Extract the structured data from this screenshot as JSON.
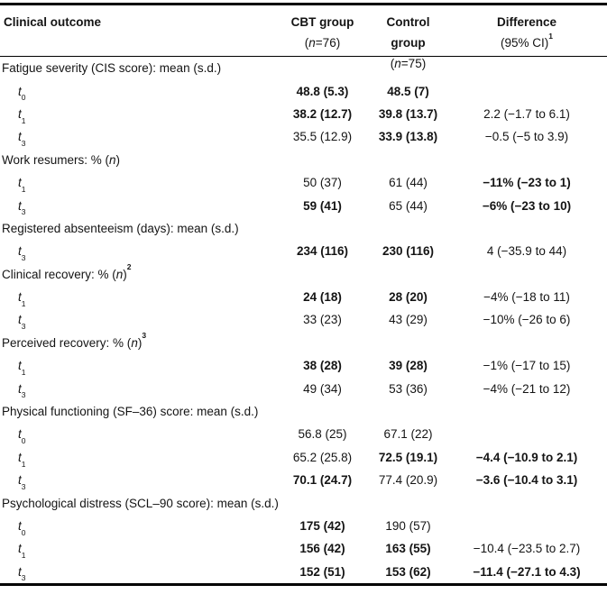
{
  "table": {
    "header": {
      "outcome": {
        "label": "Clinical outcome"
      },
      "cbt": {
        "label": "CBT group",
        "sub_pre": "(",
        "sub_n": "n",
        "sub_post": "=76)"
      },
      "control": {
        "label": "Control group",
        "sub_pre": "(",
        "sub_n": "n",
        "sub_post": "=75)"
      },
      "diff": {
        "label": "Difference",
        "sub_pre": "(95% CI)",
        "sup": "1"
      }
    },
    "rows": [
      {
        "type": "section",
        "pre": "Fatigue severity (CIS score): mean (s.d.)",
        "n": "",
        "post": "",
        "sup": ""
      },
      {
        "type": "data",
        "var": "t",
        "sub": "0",
        "cbt": "48.8  (5.3)",
        "control": "48.5 (7)",
        "diff": "",
        "b_cbt": true,
        "b_control": true,
        "b_diff": false
      },
      {
        "type": "data",
        "var": "t",
        "sub": "1",
        "cbt": "38.2 (12.7)",
        "control": "39.8 (13.7)",
        "diff": "2.2 (−1.7 to 6.1)",
        "b_cbt": true,
        "b_control": true,
        "b_diff": false
      },
      {
        "type": "data",
        "var": "t",
        "sub": "3",
        "cbt": "35.5 (12.9)",
        "control": "33.9 (13.8)",
        "diff": "−0.5 (−5 to 3.9)",
        "b_cbt": false,
        "b_control": true,
        "b_diff": false
      },
      {
        "type": "section",
        "pre": "Work resumers: % (",
        "n": "n",
        "post": ")",
        "sup": ""
      },
      {
        "type": "data",
        "var": "t",
        "sub": "1",
        "cbt": "50 (37)",
        "control": "61 (44)",
        "diff": "−11% (−23 to 1)",
        "b_cbt": false,
        "b_control": false,
        "b_diff": true
      },
      {
        "type": "data",
        "var": "t",
        "sub": "3",
        "cbt": "59 (41)",
        "control": "65 (44)",
        "diff": "−6% (−23 to 10)",
        "b_cbt": true,
        "b_control": false,
        "b_diff": true
      },
      {
        "type": "section",
        "pre": "Registered absenteeism (days): mean (s.d.)",
        "n": "",
        "post": "",
        "sup": ""
      },
      {
        "type": "data",
        "var": "t",
        "sub": "3",
        "cbt": "234 (116)",
        "control": "230 (116)",
        "diff": "4 (−35.9 to 44)",
        "b_cbt": true,
        "b_control": true,
        "b_diff": false
      },
      {
        "type": "section",
        "pre": "Clinical recovery: % (",
        "n": "n",
        "post": ")",
        "sup": "2"
      },
      {
        "type": "data",
        "var": "t",
        "sub": "1",
        "cbt": "24 (18)",
        "control": "28 (20)",
        "diff": "−4% (−18 to 11)",
        "b_cbt": true,
        "b_control": true,
        "b_diff": false
      },
      {
        "type": "data",
        "var": "t",
        "sub": "3",
        "cbt": "33 (23)",
        "control": "43 (29)",
        "diff": "−10% (−26 to 6)",
        "b_cbt": false,
        "b_control": false,
        "b_diff": false
      },
      {
        "type": "section",
        "pre": "Perceived recovery: % (",
        "n": "n",
        "post": ")",
        "sup": "3"
      },
      {
        "type": "data",
        "var": "t",
        "sub": "1",
        "cbt": "38 (28)",
        "control": "39 (28)",
        "diff": "−1% (−17 to 15)",
        "b_cbt": true,
        "b_control": true,
        "b_diff": false
      },
      {
        "type": "data",
        "var": "t",
        "sub": "3",
        "cbt": "49 (34)",
        "control": "53 (36)",
        "diff": "−4% (−21 to 12)",
        "b_cbt": false,
        "b_control": false,
        "b_diff": false
      },
      {
        "type": "section",
        "pre": "Physical functioning (SF–36) score: mean (s.d.)",
        "n": "",
        "post": "",
        "sup": ""
      },
      {
        "type": "data",
        "var": "t",
        "sub": "0",
        "cbt": "56.8 (25)",
        "control": "67.1 (22)",
        "diff": "",
        "b_cbt": false,
        "b_control": false,
        "b_diff": false
      },
      {
        "type": "data",
        "var": "t",
        "sub": "1",
        "cbt": "65.2 (25.8)",
        "control": "72.5 (19.1)",
        "diff": "−4.4 (−10.9 to 2.1)",
        "b_cbt": false,
        "b_control": true,
        "b_diff": true
      },
      {
        "type": "data",
        "var": "t",
        "sub": "3",
        "cbt": "70.1 (24.7)",
        "control": "77.4 (20.9)",
        "diff": "−3.6 (−10.4 to 3.1)",
        "b_cbt": true,
        "b_control": false,
        "b_diff": true
      },
      {
        "type": "section",
        "pre": "Psychological distress (SCL–90 score): mean (s.d.)",
        "n": "",
        "post": "",
        "sup": ""
      },
      {
        "type": "data",
        "var": "t",
        "sub": "0",
        "cbt": "175 (42)",
        "control": "190 (57)",
        "diff": "",
        "b_cbt": true,
        "b_control": false,
        "b_diff": false
      },
      {
        "type": "data",
        "var": "t",
        "sub": "1",
        "cbt": "156 (42)",
        "control": "163 (55)",
        "diff": "−10.4 (−23.5 to 2.7)",
        "b_cbt": true,
        "b_control": true,
        "b_diff": false
      },
      {
        "type": "data",
        "var": "t",
        "sub": "3",
        "cbt": "152 (51)",
        "control": "153 (62)",
        "diff": "−11.4 (−27.1 to 4.3)",
        "b_cbt": true,
        "b_control": true,
        "b_diff": true
      }
    ]
  }
}
